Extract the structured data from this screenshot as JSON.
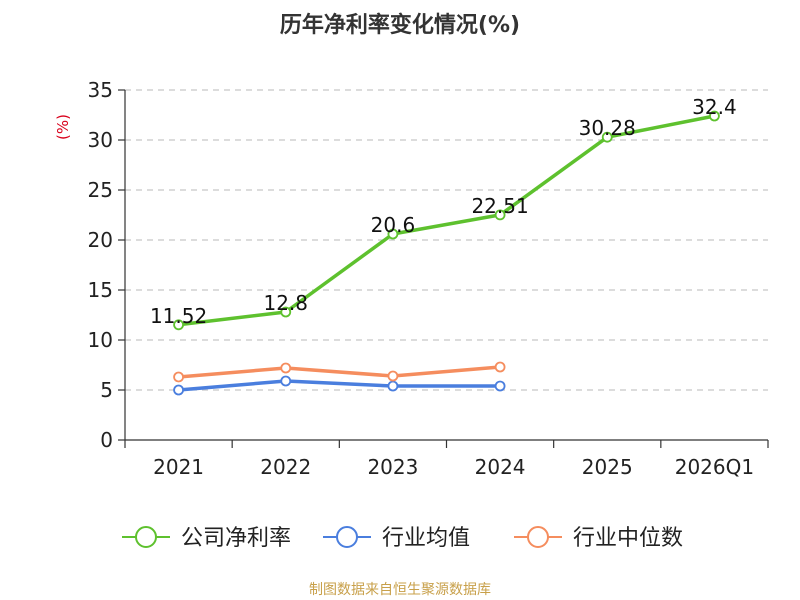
{
  "chart_data": {
    "type": "line",
    "title": "历年净利率变化情况(%)",
    "ylabel": "(%)",
    "xlabel": "",
    "categories": [
      "2021",
      "2022",
      "2023",
      "2024",
      "2025",
      "2026Q1"
    ],
    "ylim": [
      0,
      35
    ],
    "yticks": [
      0,
      5,
      10,
      15,
      20,
      25,
      30,
      35
    ],
    "grid": true,
    "legend_position": "bottom",
    "series": [
      {
        "name": "公司净利率",
        "color": "#5ec12e",
        "values": [
          11.52,
          12.8,
          20.6,
          22.51,
          30.28,
          32.4
        ],
        "labels": [
          "11.52",
          "12.8",
          "20.6",
          "22.51",
          "30.28",
          "32.4"
        ]
      },
      {
        "name": "行业均值",
        "color": "#4a7ede",
        "values": [
          5.0,
          5.9,
          5.4,
          5.4,
          null,
          null
        ],
        "labels": null
      },
      {
        "name": "行业中位数",
        "color": "#f58d5e",
        "values": [
          6.3,
          7.2,
          6.4,
          7.3,
          null,
          null
        ],
        "labels": null
      }
    ]
  },
  "source": "制图数据来自恒生聚源数据库"
}
